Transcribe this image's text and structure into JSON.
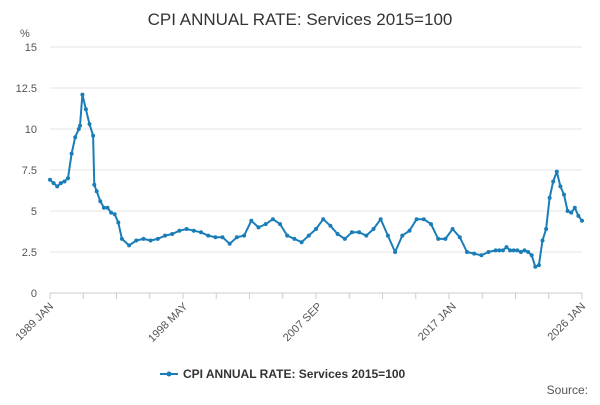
{
  "chart_data": {
    "type": "line",
    "title": "CPI ANNUAL RATE: Services 2015=100",
    "unit_label": "%",
    "xlabel": "",
    "ylabel": "",
    "x_ticks": [
      "1989 JAN",
      "1998 MAY",
      "2007 SEP",
      "2017 JAN",
      "2026 JAN"
    ],
    "y_ticks": [
      "0",
      "2.5",
      "5",
      "7.5",
      "10",
      "12.5",
      "15"
    ],
    "ylim": [
      0,
      15
    ],
    "grid": true,
    "legend_position": "bottom",
    "credit": "Source:",
    "series": [
      {
        "name": "CPI ANNUAL RATE: Services 2015=100",
        "color": "#1a7db8",
        "x": [
          "1989 JAN",
          "1989 APR",
          "1989 JUL",
          "1989 OCT",
          "1990 JAN",
          "1990 APR",
          "1990 JUL",
          "1990 OCT",
          "1991 JAN",
          "1991 FEB",
          "1991 APR",
          "1991 JUL",
          "1991 OCT",
          "1992 JAN",
          "1992 FEB",
          "1992 APR",
          "1992 JUL",
          "1992 OCT",
          "1993 JAN",
          "1993 APR",
          "1993 JUL",
          "1993 OCT",
          "1994 JAN",
          "1994 JUL",
          "1995 JAN",
          "1995 JUL",
          "1996 JAN",
          "1996 JUL",
          "1997 JAN",
          "1997 JUL",
          "1998 JAN",
          "1998 JUL",
          "1999 JAN",
          "1999 JUL",
          "2000 JAN",
          "2000 JUL",
          "2001 JAN",
          "2001 JUL",
          "2002 JAN",
          "2002 JUL",
          "2003 JAN",
          "2003 JUL",
          "2004 JAN",
          "2004 JUL",
          "2005 JAN",
          "2005 JUL",
          "2006 JAN",
          "2006 JUL",
          "2007 JAN",
          "2007 JUL",
          "2008 JAN",
          "2008 JUL",
          "2009 JAN",
          "2009 JUL",
          "2010 JAN",
          "2010 JUL",
          "2011 JAN",
          "2011 JUL",
          "2012 JAN",
          "2012 JUL",
          "2013 JAN",
          "2013 JUL",
          "2014 JAN",
          "2014 JUL",
          "2015 JAN",
          "2015 JUL",
          "2016 JAN",
          "2016 JUL",
          "2017 JAN",
          "2017 JUL",
          "2018 JAN",
          "2018 JUL",
          "2019 JAN",
          "2019 JUL",
          "2020 JAN",
          "2020 APR",
          "2020 JUL",
          "2020 OCT",
          "2021 JAN",
          "2021 APR",
          "2021 JUL",
          "2021 OCT",
          "2022 JAN",
          "2022 APR",
          "2022 JUL",
          "2022 OCT",
          "2023 JAN",
          "2023 APR",
          "2023 JUL",
          "2023 OCT",
          "2024 JAN",
          "2024 APR",
          "2024 JUL",
          "2024 OCT",
          "2025 JAN",
          "2025 APR",
          "2025 JUL",
          "2025 OCT",
          "2026 JAN"
        ],
        "values": [
          6.9,
          6.7,
          6.5,
          6.7,
          6.8,
          7.0,
          8.5,
          9.5,
          10.0,
          10.2,
          12.1,
          11.2,
          10.3,
          9.6,
          6.6,
          6.2,
          5.6,
          5.2,
          5.2,
          4.9,
          4.8,
          4.3,
          3.3,
          2.9,
          3.2,
          3.3,
          3.2,
          3.3,
          3.5,
          3.6,
          3.8,
          3.9,
          3.8,
          3.7,
          3.5,
          3.4,
          3.4,
          3.0,
          3.4,
          3.5,
          4.4,
          4.0,
          4.2,
          4.5,
          4.2,
          3.5,
          3.3,
          3.1,
          3.5,
          3.9,
          4.5,
          4.1,
          3.6,
          3.3,
          3.7,
          3.7,
          3.5,
          3.9,
          4.5,
          3.5,
          2.5,
          3.5,
          3.8,
          4.5,
          4.5,
          4.2,
          3.3,
          3.3,
          3.9,
          3.4,
          2.5,
          2.4,
          2.3,
          2.5,
          2.6,
          2.6,
          2.6,
          2.8,
          2.6,
          2.6,
          2.6,
          2.5,
          2.6,
          2.5,
          2.3,
          1.6,
          1.7,
          3.2,
          3.9,
          5.8,
          6.8,
          7.4,
          6.5,
          6.0,
          5.0,
          4.9,
          5.2,
          4.7,
          4.4
        ]
      }
    ]
  }
}
